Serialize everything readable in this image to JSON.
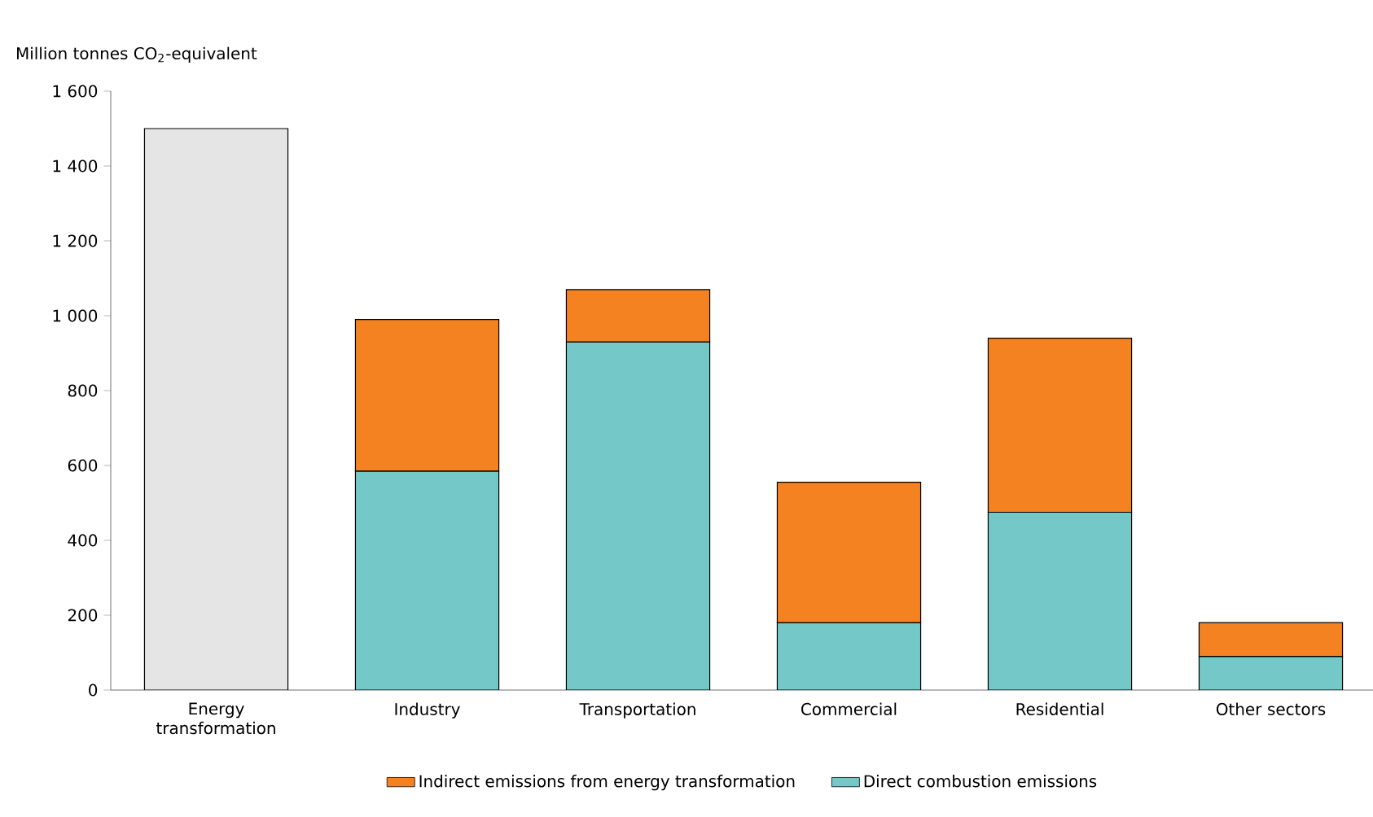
{
  "chart_data": {
    "type": "bar",
    "stacked": true,
    "ylabel": "Million tonnes CO$_{2}$-equivalent",
    "categories": [
      "Energy transformation",
      "Industry",
      "Transportation",
      "Commercial",
      "Residential",
      "Other sectors"
    ],
    "series": [
      {
        "color": "#e5e5e5",
        "values": [
          1500,
          null,
          null,
          null,
          null,
          null
        ]
      },
      {
        "name": "Direct combustion emissions",
        "color": "#74c9c8",
        "values": [
          null,
          585,
          930,
          180,
          475,
          90
        ]
      },
      {
        "name": "Indirect emissions from energy transformation",
        "color": "#f58220",
        "values": [
          null,
          405,
          140,
          375,
          465,
          90
        ]
      }
    ],
    "ylim": [
      0,
      1600
    ],
    "yticks": [
      0,
      200,
      400,
      600,
      800,
      {
        "value": 1000,
        "label": "1 000"
      },
      {
        "value": 1200,
        "label": "1 200"
      },
      {
        "value": 1400,
        "label": "1 400"
      },
      {
        "value": 1600,
        "label": "1 600"
      }
    ],
    "grid": false,
    "legend": "bottom"
  }
}
